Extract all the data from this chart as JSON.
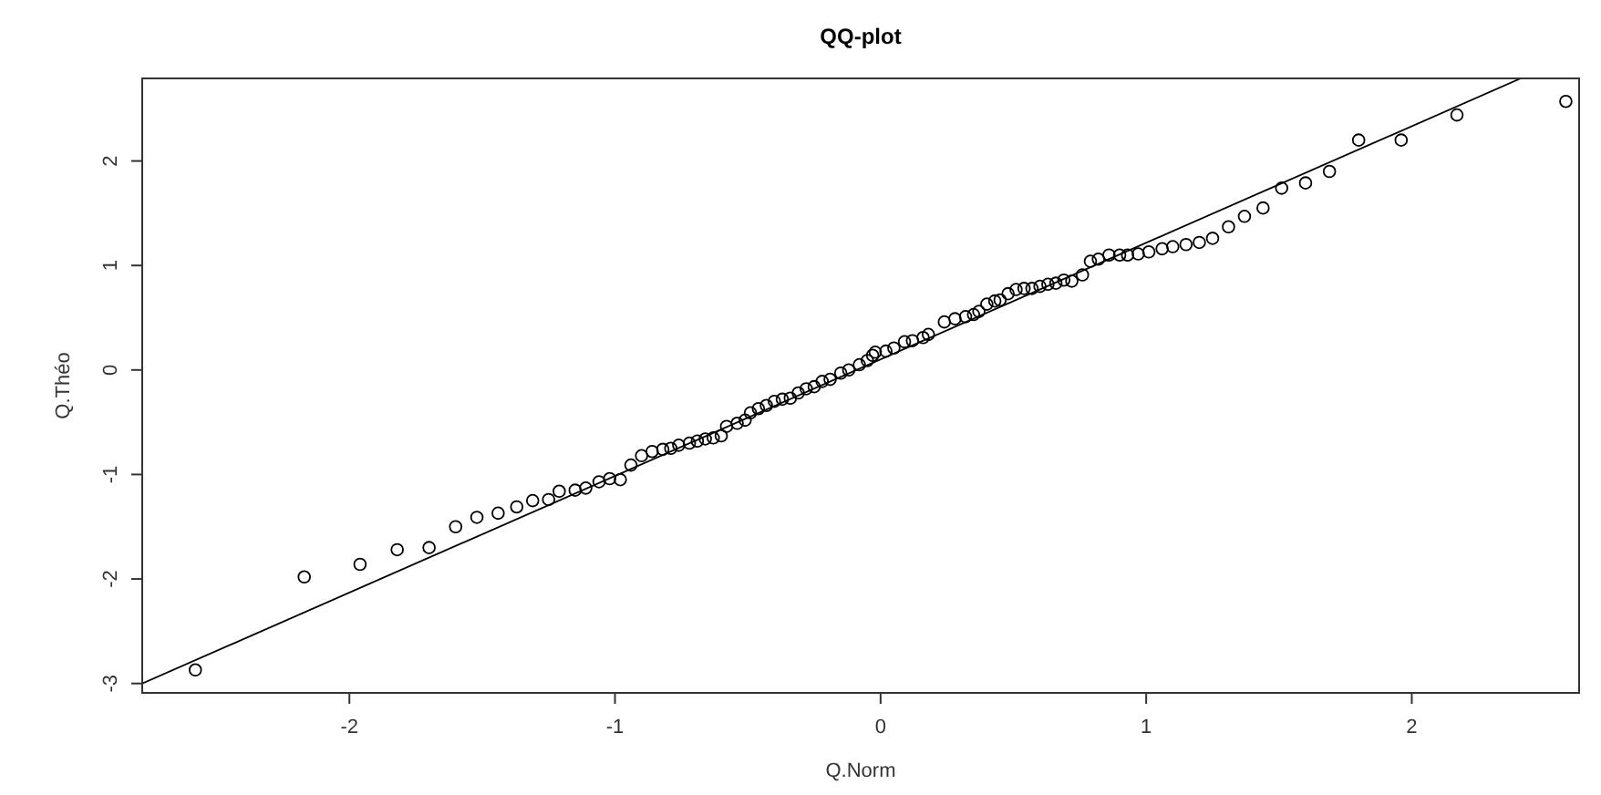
{
  "chart_data": {
    "type": "scatter",
    "title": "QQ-plot",
    "xlabel": "Q.Norm",
    "ylabel": "Q.Théo",
    "xlim": [
      -2.78,
      2.63
    ],
    "ylim": [
      -3.09,
      2.79
    ],
    "xticks": [
      -2,
      -1,
      0,
      1,
      2
    ],
    "yticks": [
      -3,
      -2,
      -1,
      0,
      1,
      2
    ],
    "grid": false,
    "series": [
      {
        "marker": "circle",
        "color": "#000000",
        "x": [
          -2.58,
          -2.17,
          -1.96,
          -1.82,
          -1.7,
          -1.6,
          -1.52,
          -1.44,
          -1.37,
          -1.31,
          -1.25,
          -1.21,
          -1.15,
          -1.11,
          -1.06,
          -1.02,
          -0.98,
          -0.94,
          -0.9,
          -0.86,
          -0.82,
          -0.79,
          -0.76,
          -0.72,
          -0.69,
          -0.66,
          -0.63,
          -0.6,
          -0.58,
          -0.54,
          -0.51,
          -0.49,
          -0.46,
          -0.43,
          -0.4,
          -0.37,
          -0.34,
          -0.31,
          -0.28,
          -0.25,
          -0.22,
          -0.19,
          -0.15,
          -0.12,
          -0.08,
          -0.05,
          -0.03,
          -0.02,
          0.02,
          0.05,
          0.09,
          0.12,
          0.16,
          0.18,
          0.24,
          0.28,
          0.32,
          0.35,
          0.37,
          0.4,
          0.43,
          0.45,
          0.48,
          0.51,
          0.54,
          0.57,
          0.6,
          0.63,
          0.66,
          0.69,
          0.72,
          0.76,
          0.79,
          0.82,
          0.86,
          0.9,
          0.93,
          0.97,
          1.01,
          1.06,
          1.1,
          1.15,
          1.2,
          1.25,
          1.31,
          1.37,
          1.44,
          1.51,
          1.6,
          1.69,
          1.8,
          1.96,
          2.17,
          2.58
        ],
        "values": [
          -2.87,
          -1.98,
          -1.86,
          -1.72,
          -1.7,
          -1.5,
          -1.41,
          -1.37,
          -1.31,
          -1.25,
          -1.24,
          -1.16,
          -1.15,
          -1.13,
          -1.07,
          -1.04,
          -1.05,
          -0.91,
          -0.82,
          -0.78,
          -0.76,
          -0.75,
          -0.72,
          -0.7,
          -0.68,
          -0.66,
          -0.65,
          -0.63,
          -0.54,
          -0.51,
          -0.48,
          -0.41,
          -0.37,
          -0.34,
          -0.3,
          -0.28,
          -0.27,
          -0.22,
          -0.18,
          -0.16,
          -0.11,
          -0.09,
          -0.03,
          0,
          0.05,
          0.09,
          0.14,
          0.17,
          0.18,
          0.21,
          0.27,
          0.28,
          0.31,
          0.34,
          0.46,
          0.49,
          0.51,
          0.53,
          0.56,
          0.63,
          0.66,
          0.67,
          0.73,
          0.77,
          0.78,
          0.78,
          0.8,
          0.82,
          0.83,
          0.86,
          0.85,
          0.91,
          1.04,
          1.06,
          1.1,
          1.1,
          1.1,
          1.11,
          1.13,
          1.16,
          1.18,
          1.2,
          1.22,
          1.26,
          1.37,
          1.47,
          1.55,
          1.74,
          1.79,
          1.9,
          2.2,
          2.2,
          2.44,
          2.57
        ]
      },
      {
        "type": "line",
        "marker": "none",
        "color": "#000000",
        "x": [
          -2.78,
          2.41
        ],
        "values": [
          -3.0,
          2.79
        ]
      }
    ]
  }
}
